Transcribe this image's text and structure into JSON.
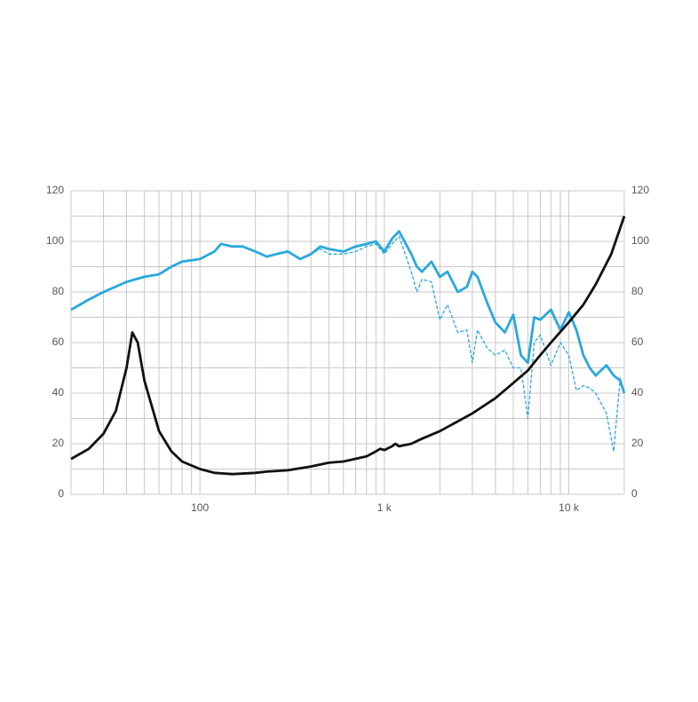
{
  "chart_data": {
    "type": "line",
    "xlog": true,
    "xlim": [
      20,
      20000
    ],
    "xticks": [
      {
        "value": 100,
        "label": "100"
      },
      {
        "value": 1000,
        "label": "1 k"
      },
      {
        "value": 10000,
        "label": "10 k"
      }
    ],
    "xgrid": [
      20,
      30,
      40,
      50,
      60,
      70,
      80,
      90,
      100,
      200,
      300,
      400,
      500,
      600,
      700,
      800,
      900,
      1000,
      2000,
      3000,
      4000,
      5000,
      6000,
      7000,
      8000,
      9000,
      10000,
      20000
    ],
    "ylim": [
      0,
      120
    ],
    "yticks": [
      0,
      20,
      40,
      60,
      80,
      100,
      120
    ],
    "ygrid": [
      0,
      10,
      20,
      30,
      40,
      50,
      60,
      70,
      80,
      90,
      100,
      110,
      120
    ],
    "y2lim": [
      0,
      120
    ],
    "y2ticks": [
      0,
      20,
      40,
      60,
      80,
      100,
      120
    ],
    "grid": true,
    "series": [
      {
        "color": "#2aa8dc",
        "dash": false,
        "x": [
          20,
          25,
          30,
          40,
          50,
          60,
          70,
          80,
          100,
          120,
          130,
          150,
          170,
          200,
          230,
          260,
          300,
          350,
          400,
          450,
          500,
          600,
          700,
          800,
          900,
          1000,
          1100,
          1200,
          1400,
          1500,
          1600,
          1800,
          2000,
          2200,
          2500,
          2800,
          3000,
          3200,
          3600,
          4000,
          4500,
          5000,
          5500,
          6000,
          6500,
          7000,
          8000,
          9000,
          10000,
          11000,
          12000,
          13000,
          14000,
          16000,
          17500,
          19000,
          20000
        ],
        "values": [
          73,
          77,
          80,
          84,
          86,
          87,
          90,
          92,
          93,
          96,
          99,
          98,
          98,
          96,
          94,
          95,
          96,
          93,
          95,
          98,
          97,
          96,
          98,
          99,
          100,
          96,
          101,
          104,
          95,
          90,
          88,
          92,
          86,
          88,
          80,
          82,
          88,
          86,
          76,
          68,
          64,
          71,
          55,
          52,
          70,
          69,
          73,
          65,
          72,
          65,
          55,
          50,
          47,
          51,
          47,
          45,
          40
        ]
      },
      {
        "color": "#2aa8dc",
        "dash": true,
        "x": [
          20,
          25,
          30,
          40,
          50,
          60,
          70,
          80,
          100,
          120,
          130,
          150,
          170,
          200,
          230,
          260,
          300,
          350,
          400,
          450,
          500,
          600,
          700,
          800,
          900,
          1000,
          1100,
          1200,
          1400,
          1500,
          1600,
          1800,
          2000,
          2200,
          2500,
          2800,
          3000,
          3200,
          3600,
          4000,
          4500,
          5000,
          5500,
          6000,
          6500,
          7000,
          8000,
          9000,
          10000,
          11000,
          12000,
          13000,
          14000,
          16000,
          17500,
          19000,
          20000
        ],
        "values": [
          73,
          77,
          80,
          84,
          86,
          87,
          90,
          92,
          93,
          96,
          99,
          98,
          98,
          96,
          94,
          95,
          96,
          93,
          95,
          97,
          95,
          95,
          96,
          98,
          99,
          95,
          99,
          102,
          88,
          80,
          85,
          84,
          69,
          75,
          64,
          65,
          52,
          65,
          58,
          55,
          57,
          50,
          50,
          30,
          60,
          63,
          51,
          60,
          55,
          41,
          43,
          42,
          40,
          32,
          17,
          46,
          40
        ]
      },
      {
        "color": "#111111",
        "dash": false,
        "axis": "y2",
        "x": [
          20,
          25,
          30,
          35,
          40,
          43,
          46,
          50,
          60,
          70,
          80,
          100,
          120,
          150,
          200,
          230,
          300,
          400,
          500,
          600,
          800,
          900,
          950,
          1000,
          1100,
          1150,
          1200,
          1400,
          1600,
          2000,
          3000,
          4000,
          5000,
          6000,
          7000,
          8000,
          10000,
          12000,
          14000,
          17000,
          20000
        ],
        "values": [
          14,
          18,
          24,
          33,
          50,
          64,
          60,
          45,
          25,
          17,
          13,
          10,
          8.5,
          8,
          8.5,
          9,
          9.5,
          11,
          12.5,
          13,
          15,
          17,
          18,
          17.5,
          19,
          20,
          19,
          20,
          22,
          25,
          32,
          38,
          44,
          49,
          55,
          60,
          68,
          75,
          83,
          95,
          110
        ]
      }
    ]
  }
}
